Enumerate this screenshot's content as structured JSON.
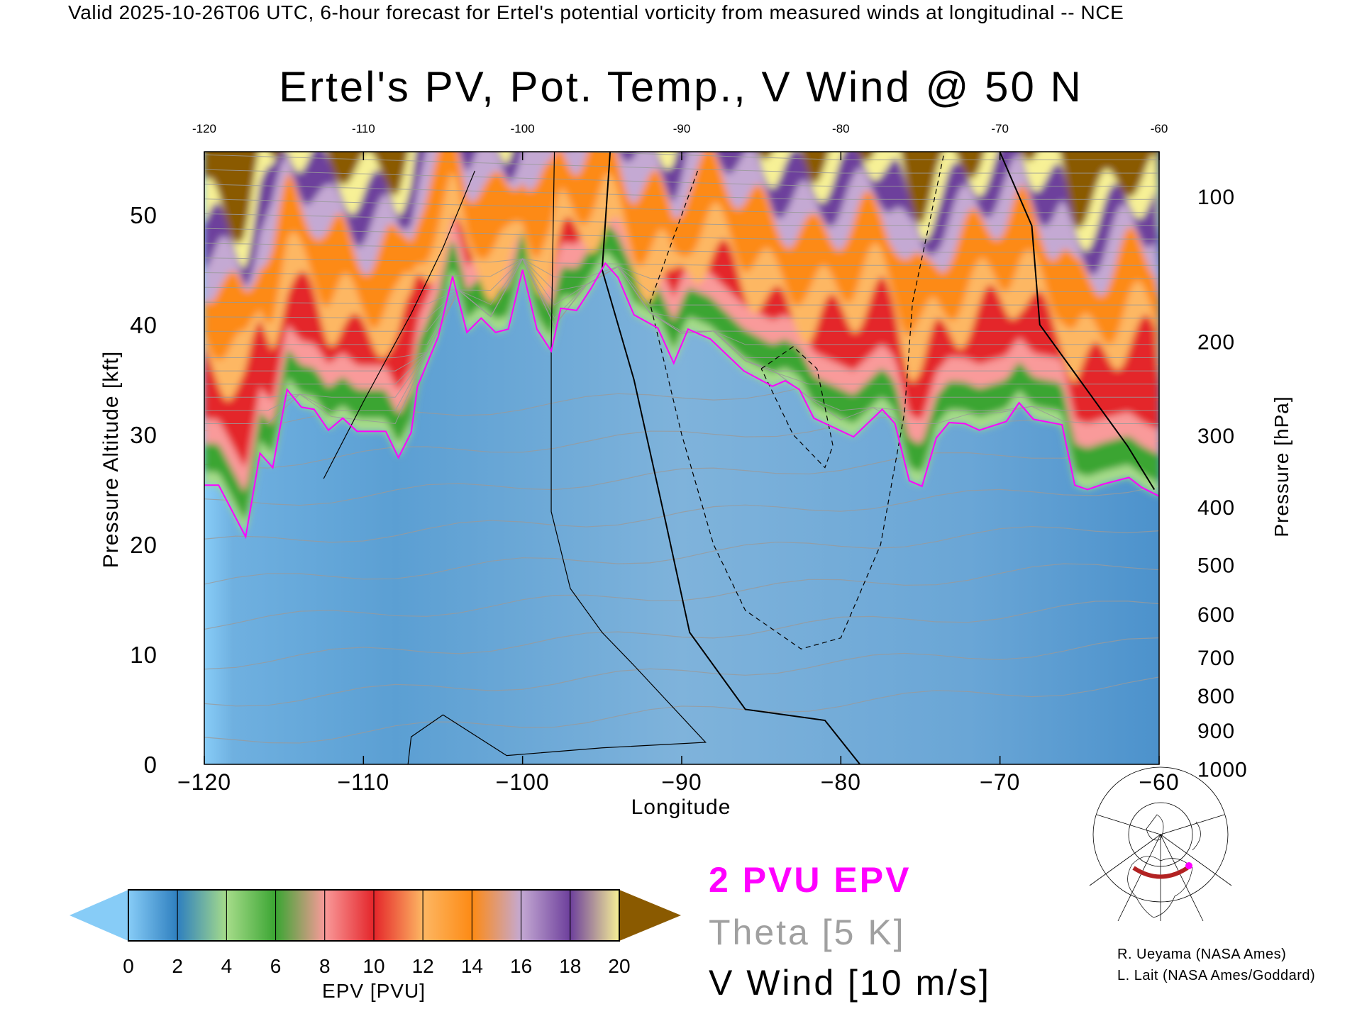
{
  "header": "Valid 2025-10-26T06 UTC, 6-hour forecast for Ertel's potential vorticity from measured winds at longitudinal -- NCE",
  "legend": {
    "pvu": "2 PVU EPV",
    "theta": "Theta [5 K]",
    "wind": "V Wind [10 m/s]"
  },
  "credits": [
    "R. Ueyama (NASA Ames)",
    "L. Lait (NASA Ames/Goddard)"
  ],
  "colors": {
    "tropopause": "#ff00ff",
    "theta": "#a0a0a0",
    "wind": "#000000",
    "map_track": "#b22222"
  },
  "chart_data": {
    "type": "heatmap",
    "title": "Ertel's PV, Pot. Temp., V Wind @ 50 N",
    "xlabel": "Longitude",
    "ylabel_left": "Pressure Altitude [kft]",
    "ylabel_right": "Pressure [hPa]",
    "xlim": [
      -120,
      -60
    ],
    "ylim_kft": [
      0,
      55.7
    ],
    "x_ticks": [
      "-120",
      "-110",
      "-100",
      "-90",
      "-80",
      "-70",
      "-60"
    ],
    "x_tick_values": [
      -120,
      -110,
      -100,
      -90,
      -80,
      -70,
      -60
    ],
    "top_ticks": [
      "-120",
      "-110",
      "-100",
      "-90",
      "-80",
      "-70",
      "-60"
    ],
    "y_left_ticks": [
      "0",
      "10",
      "20",
      "30",
      "40",
      "50"
    ],
    "y_left_values": [
      0,
      10,
      20,
      30,
      40,
      50
    ],
    "y_right_ticks": [
      "100",
      "200",
      "300",
      "400",
      "500",
      "600",
      "700",
      "800",
      "900",
      "1000"
    ],
    "y_right_values": [
      100,
      200,
      300,
      400,
      500,
      600,
      700,
      800,
      900,
      1000
    ],
    "colorbar": {
      "label": "EPV [PVU]",
      "tick_labels": [
        "0",
        "2",
        "4",
        "6",
        "8",
        "10",
        "12",
        "14",
        "16",
        "18",
        "20"
      ],
      "levels": [
        0,
        2,
        4,
        6,
        8,
        10,
        12,
        14,
        16,
        18,
        20
      ],
      "colors": [
        "#5da3d6",
        "#2e7fbf",
        "#a6dc8a",
        "#3aa532",
        "#f99a9a",
        "#e4252a",
        "#fdb763",
        "#fd8a14",
        "#c4a9d3",
        "#6d3f9c",
        "#f7f196"
      ],
      "under_color": "#87ccf7",
      "over_color": "#8a5a00"
    },
    "tropopause_2pvu": [
      [
        -120,
        25.4
      ],
      [
        -119.1,
        25.4
      ],
      [
        -117.4,
        20.7
      ],
      [
        -116.5,
        28.3
      ],
      [
        -115.7,
        27
      ],
      [
        -114.8,
        34.1
      ],
      [
        -113.9,
        32.5
      ],
      [
        -113.1,
        32.3
      ],
      [
        -112.2,
        30.4
      ],
      [
        -111.3,
        31.5
      ],
      [
        -110.4,
        30.3
      ],
      [
        -108.6,
        30.3
      ],
      [
        -107.8,
        27.9
      ],
      [
        -107,
        30.2
      ],
      [
        -106.6,
        34.4
      ],
      [
        -105.3,
        38.9
      ],
      [
        -104.4,
        44.4
      ],
      [
        -103.5,
        39.3
      ],
      [
        -102.6,
        40.6
      ],
      [
        -101.7,
        39.3
      ],
      [
        -100.9,
        39.6
      ],
      [
        -100,
        45
      ],
      [
        -99.1,
        39.6
      ],
      [
        -98.2,
        37.6
      ],
      [
        -97.6,
        41.5
      ],
      [
        -96.6,
        41.3
      ],
      [
        -95.7,
        43.3
      ],
      [
        -94.8,
        45.6
      ],
      [
        -94,
        44.3
      ],
      [
        -93,
        40.9
      ],
      [
        -91.5,
        39.7
      ],
      [
        -90.5,
        36.5
      ],
      [
        -89.6,
        39.6
      ],
      [
        -88.2,
        38.7
      ],
      [
        -86.1,
        35.8
      ],
      [
        -84.3,
        34.4
      ],
      [
        -83.5,
        34.9
      ],
      [
        -82.6,
        34.1
      ],
      [
        -81.7,
        31.5
      ],
      [
        -79.2,
        29.8
      ],
      [
        -77.4,
        32.3
      ],
      [
        -76.6,
        31
      ],
      [
        -75.7,
        25.8
      ],
      [
        -74.9,
        25.3
      ],
      [
        -74,
        29.7
      ],
      [
        -73.2,
        31.1
      ],
      [
        -72.2,
        31
      ],
      [
        -71.3,
        30.4
      ],
      [
        -69.6,
        31.2
      ],
      [
        -68.8,
        32.9
      ],
      [
        -67.9,
        31.4
      ],
      [
        -66.1,
        30.9
      ],
      [
        -65.3,
        25.4
      ],
      [
        -64.5,
        25
      ],
      [
        -63.5,
        25.5
      ],
      [
        -61.9,
        26.1
      ],
      [
        -61.1,
        25.2
      ],
      [
        -60,
        24.4
      ]
    ],
    "v_wind_contours": [
      {
        "level": 0,
        "points": [
          [
            -94.5,
            55.7
          ],
          [
            -95,
            45
          ],
          [
            -93,
            35
          ],
          [
            -91,
            22
          ],
          [
            -89.5,
            12
          ],
          [
            -86,
            5
          ],
          [
            -81,
            4
          ],
          [
            -78.8,
            0
          ]
        ]
      },
      {
        "level": 10,
        "points": [
          [
            -98,
            55.7
          ],
          [
            -98.2,
            38
          ],
          [
            -98.2,
            23
          ],
          [
            -97,
            16
          ],
          [
            -95,
            12
          ],
          [
            -93,
            9
          ],
          [
            -88.5,
            2
          ],
          [
            -95,
            1.5
          ],
          [
            -101,
            0.8
          ],
          [
            -105,
            4.5
          ],
          [
            -107,
            2.5
          ],
          [
            -107.2,
            0
          ]
        ]
      },
      {
        "level": -10,
        "points": [
          [
            -89,
            54
          ],
          [
            -92,
            42
          ],
          [
            -90,
            30
          ],
          [
            -88,
            20
          ],
          [
            -86,
            14
          ],
          [
            -82.5,
            10.5
          ],
          [
            -80,
            11.5
          ],
          [
            -77.5,
            20
          ],
          [
            -76,
            32
          ],
          [
            -75.5,
            42
          ],
          [
            -73.5,
            55.7
          ]
        ]
      },
      {
        "level": -30,
        "points": [
          [
            -85,
            36
          ],
          [
            -83,
            38
          ],
          [
            -81.5,
            36
          ],
          [
            -80.5,
            29
          ],
          [
            -81,
            27
          ],
          [
            -83,
            30
          ],
          [
            -85,
            36
          ]
        ]
      },
      {
        "level": 0,
        "points": [
          [
            -70,
            55.7
          ],
          [
            -68,
            49
          ],
          [
            -67.5,
            40
          ],
          [
            -65,
            35
          ],
          [
            -62,
            29
          ],
          [
            -60.3,
            25
          ]
        ]
      },
      {
        "level": 10,
        "points": [
          [
            -112.5,
            26
          ],
          [
            -110,
            33
          ],
          [
            -107,
            41
          ],
          [
            -105,
            47
          ],
          [
            -103,
            54
          ]
        ]
      }
    ]
  },
  "map_inset": {
    "latitude": 50,
    "lon_range": [
      -120,
      -60
    ]
  }
}
